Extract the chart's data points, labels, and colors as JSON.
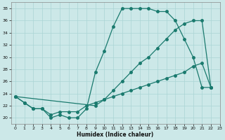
{
  "xlabel": "Humidex (Indice chaleur)",
  "bg_color": "#cce8e8",
  "line_color": "#1a7a6e",
  "grid_color": "#aad4d4",
  "xlim": [
    -0.5,
    23
  ],
  "ylim": [
    19,
    39
  ],
  "yticks": [
    20,
    22,
    24,
    26,
    28,
    30,
    32,
    34,
    36,
    38
  ],
  "xticks": [
    0,
    1,
    2,
    3,
    4,
    5,
    6,
    7,
    8,
    9,
    10,
    11,
    12,
    13,
    14,
    15,
    16,
    17,
    18,
    19,
    20,
    21,
    22,
    23
  ],
  "curve1_x": [
    0,
    1,
    2,
    3,
    4,
    5,
    6,
    7,
    8,
    9,
    10,
    11,
    12,
    13,
    14,
    15,
    16,
    17,
    18,
    19,
    20,
    21,
    22
  ],
  "curve1_y": [
    23.5,
    22.5,
    21.5,
    21.5,
    20.0,
    20.5,
    20.0,
    20.0,
    21.5,
    27.5,
    31.0,
    35.0,
    38.0,
    38.0,
    38.0,
    38.0,
    37.5,
    37.5,
    36.0,
    33.0,
    30.0,
    25.0,
    25.0
  ],
  "curve2_x": [
    0,
    1,
    2,
    3,
    4,
    5,
    6,
    7,
    8,
    9,
    10,
    11,
    12,
    13,
    14,
    15,
    16,
    17,
    18,
    19,
    20,
    21,
    22
  ],
  "curve2_y": [
    23.5,
    22.5,
    21.5,
    21.5,
    20.5,
    21.0,
    21.0,
    21.0,
    22.0,
    22.5,
    23.0,
    23.5,
    24.0,
    24.5,
    25.0,
    25.5,
    26.0,
    26.5,
    27.0,
    27.5,
    28.5,
    29.0,
    25.0
  ],
  "curve3_x": [
    0,
    9,
    10,
    11,
    12,
    13,
    14,
    15,
    16,
    17,
    18,
    19,
    20,
    21,
    22
  ],
  "curve3_y": [
    23.5,
    22.0,
    23.0,
    24.5,
    26.0,
    27.5,
    29.0,
    30.0,
    31.5,
    33.0,
    34.5,
    35.5,
    36.0,
    36.0,
    25.0
  ]
}
